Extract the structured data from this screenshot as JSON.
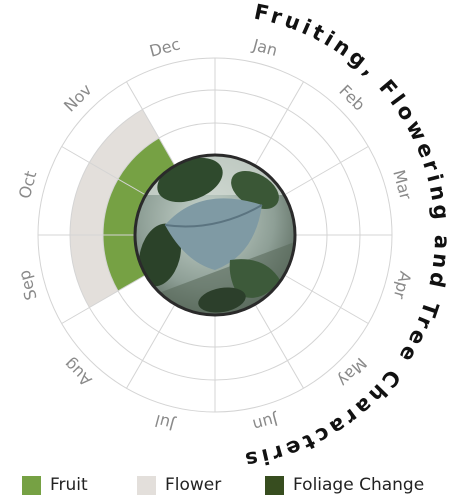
{
  "chart_data": {
    "type": "radial",
    "title": "Fruiting, Flowering and Tree Characteristics",
    "months": [
      "Jan",
      "Feb",
      "Mar",
      "Apr",
      "May",
      "Jun",
      "Jul",
      "Aug",
      "Sep",
      "Oct",
      "Nov",
      "Dec"
    ],
    "series": [
      {
        "name": "Fruit",
        "color": "#76a144",
        "months": [
          "Sep",
          "Oct",
          "Nov"
        ],
        "ring": "inner"
      },
      {
        "name": "Flower",
        "color": "#e3dfdb",
        "months": [
          "Sep",
          "Oct",
          "Nov"
        ],
        "ring": "outer"
      },
      {
        "name": "Foliage Change",
        "color": "#374d1f",
        "months": [],
        "ring": "inner"
      }
    ],
    "center_image": "tree-leaf-photo",
    "grid": true,
    "legend_position": "bottom"
  }
}
